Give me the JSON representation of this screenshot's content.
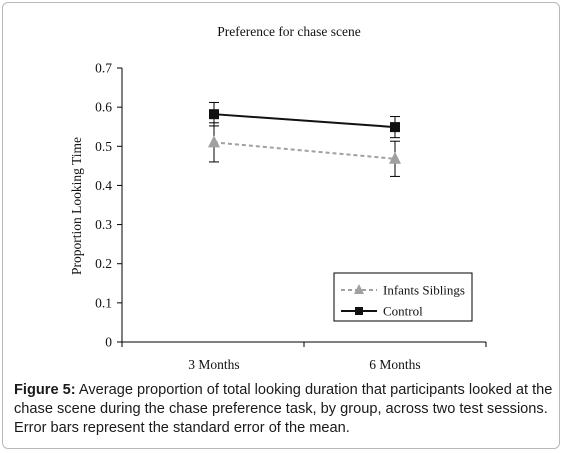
{
  "chart_data": {
    "type": "line",
    "title": "Preference for chase scene",
    "xlabel": "",
    "ylabel": "Proportion Looking Time",
    "categories": [
      "3 Months",
      "6 Months"
    ],
    "ylim": [
      0,
      0.7
    ],
    "yticks": [
      "0",
      "0.1",
      "0.2",
      "0.3",
      "0.4",
      "0.5",
      "0.6",
      "0.7"
    ],
    "grid": false,
    "legend_position": "bottom-right",
    "series": [
      {
        "name": "Infants Siblings",
        "values": [
          0.51,
          0.468
        ],
        "errors": [
          0.05,
          0.045
        ],
        "color": "#a0a0a0",
        "line_style": "dashed",
        "marker": "triangle"
      },
      {
        "name": "Control",
        "values": [
          0.582,
          0.549
        ],
        "errors": [
          0.03,
          0.027
        ],
        "color": "#111111",
        "line_style": "solid",
        "marker": "square"
      }
    ]
  },
  "caption": {
    "label": "Figure 5:",
    "text": " Average proportion of total looking duration that participants looked at the chase scene during the chase preference task, by group, across two test sessions. Error bars represent the standard error of the mean."
  }
}
